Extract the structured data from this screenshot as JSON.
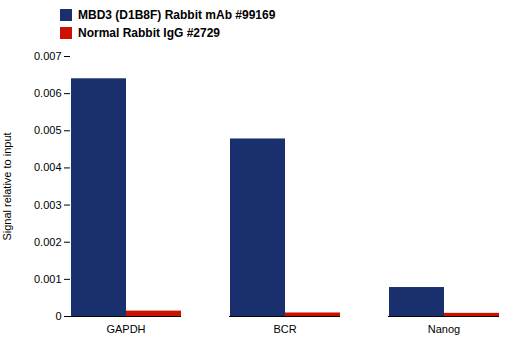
{
  "chart_data": {
    "type": "bar",
    "categories": [
      "GAPDH",
      "BCR",
      "Nanog"
    ],
    "series": [
      {
        "name": "MBD3 (D1B8F) Rabbit mAb #99169",
        "color": "#1a2f6e",
        "values": [
          0.0064,
          0.00478,
          0.00078
        ]
      },
      {
        "name": "Normal Rabbit IgG #2729",
        "color": "#cc1100",
        "values": [
          0.000145,
          9.5e-05,
          8.5e-05
        ]
      }
    ],
    "ylabel": "Signal relative to input",
    "ylim": [
      0,
      0.007
    ],
    "yticks": [
      0,
      0.001,
      0.002,
      0.003,
      0.004,
      0.005,
      0.006,
      0.007
    ],
    "grid": false,
    "legend": "upper left"
  }
}
